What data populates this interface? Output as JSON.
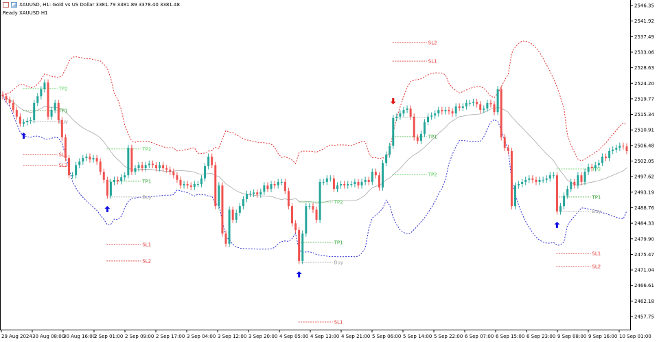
{
  "header": {
    "title": "XAUUSD, H1:  Gold vs US Dollar  3381.79 3381.89 3378.40 3381.48",
    "status": "Ready XAUUSD H1",
    "icons": [
      "chart-list-icon",
      "chart-type-icon"
    ]
  },
  "colors": {
    "bull": "#26a69a",
    "bear": "#ef5350",
    "upper_band": "#e03030",
    "lower_band": "#2a2ad0",
    "middle_band": "#a8a8a8",
    "tp": "#2ca02c",
    "tp2": "#55cc55",
    "buy": "#9a9a9a",
    "sl": "#e03030",
    "buy_arrow": "#1010e0",
    "sell_arrow": "#e01010"
  },
  "chart_data": {
    "type": "candlestick",
    "symbol": "XAUUSD",
    "timeframe": "H1",
    "ylim": [
      2455.5,
      2548.0
    ],
    "y_ticks": [
      "2546.35",
      "2541.92",
      "2537.49",
      "2533.06",
      "2528.63",
      "2524.20",
      "2519.77",
      "2515.34",
      "2510.91",
      "2506.48",
      "2502.05",
      "2497.62",
      "2493.19",
      "2488.76",
      "2484.33",
      "2479.90",
      "2475.47",
      "2471.04",
      "2466.61",
      "2462.18",
      "2457.75"
    ],
    "x_ticks": [
      "29 Aug 2024",
      "30 Aug 08:00",
      "30 Aug 16:00",
      "2 Sep 01:00",
      "2 Sep 09:00",
      "2 Sep 17:00",
      "3 Sep 04:00",
      "3 Sep 12:00",
      "3 Sep 20:00",
      "4 Sep 05:00",
      "4 Sep 13:00",
      "4 Sep 21:00",
      "5 Sep 06:00",
      "5 Sep 14:00",
      "5 Sep 22:00",
      "6 Sep 07:00",
      "6 Sep 15:00",
      "6 Sep 23:00",
      "9 Sep 08:00",
      "9 Sep 16:00",
      "10 Sep 01:00"
    ],
    "closes": [
      2520.5,
      2519.5,
      2518.6,
      2516.6,
      2514.7,
      2512.7,
      2513.1,
      2513.5,
      2513.7,
      2518.6,
      2520.5,
      2522.5,
      2524.4,
      2514.7,
      2516.6,
      2518.6,
      2513.7,
      2508.8,
      2502.9,
      2498.0,
      2498.0,
      2500.9,
      2501.9,
      2502.9,
      2503.3,
      2502.5,
      2502.9,
      2501.9,
      2499.0,
      2496.7,
      2492.2,
      2496.1,
      2496.7,
      2496.3,
      2497.4,
      2498.0,
      2505.8,
      2499.0,
      2500.0,
      2500.9,
      2500.0,
      2500.9,
      2501.3,
      2500.9,
      2500.0,
      2500.9,
      2500.0,
      2499.6,
      2499.0,
      2498.0,
      2496.7,
      2495.1,
      2495.5,
      2495.1,
      2494.7,
      2495.5,
      2495.5,
      2497.1,
      2500.6,
      2503.3,
      2500.9,
      2489.2,
      2495.1,
      2481.4,
      2478.5,
      2488.2,
      2485.3,
      2487.3,
      2489.2,
      2491.2,
      2492.7,
      2492.7,
      2493.1,
      2492.5,
      2493.3,
      2495.1,
      2494.1,
      2495.5,
      2495.1,
      2496.1,
      2496.1,
      2493.5,
      2489.2,
      2484.3,
      2482.4,
      2473.6,
      2481.4,
      2489.2,
      2489.2,
      2488.2,
      2485.3,
      2496.1,
      2496.1,
      2497.1,
      2497.1,
      2494.1,
      2495.1,
      2495.5,
      2495.1,
      2495.5,
      2495.5,
      2496.1,
      2495.1,
      2496.1,
      2496.7,
      2496.1,
      2499.0,
      2498.0,
      2494.5,
      2501.5,
      2503.9,
      2506.4,
      2514.3,
      2514.7,
      2515.6,
      2516.6,
      2517.0,
      2514.7,
      2508.8,
      2507.8,
      2509.8,
      2513.1,
      2514.7,
      2515.0,
      2515.6,
      2516.6,
      2516.2,
      2516.6,
      2516.2,
      2515.6,
      2517.6,
      2517.2,
      2517.6,
      2518.6,
      2518.6,
      2518.9,
      2518.2,
      2516.6,
      2517.0,
      2518.6,
      2518.2,
      2516.0,
      2522.5,
      2508.8,
      2505.8,
      2504.9,
      2489.2,
      2495.1,
      2495.5,
      2496.1,
      2496.7,
      2497.1,
      2496.7,
      2496.1,
      2496.7,
      2496.7,
      2497.1,
      2498.0,
      2498.0,
      2487.7,
      2489.2,
      2492.2,
      2494.1,
      2496.1,
      2495.1,
      2498.0,
      2496.1,
      2499.0,
      2500.4,
      2500.0,
      2500.9,
      2501.5,
      2503.3,
      2502.9,
      2504.9,
      2505.3,
      2505.8,
      2506.4,
      2506.2,
      2504.9
    ],
    "bands": {
      "period": 20,
      "deviation": 2.5
    },
    "signals": [
      {
        "dir": "buy",
        "bar": 6,
        "levels": [
          {
            "label": "TP2",
            "price": 2522.7,
            "kind": "tp2"
          },
          {
            "label": "TP1",
            "price": 2516.4,
            "kind": "tp"
          },
          {
            "label": "Buy",
            "price": 2513.3,
            "kind": "buy"
          },
          {
            "label": "SL1",
            "price": 2503.9,
            "kind": "sl"
          },
          {
            "label": "SL2",
            "price": 2500.9,
            "kind": "sl"
          }
        ]
      },
      {
        "dir": "buy",
        "bar": 30,
        "levels": [
          {
            "label": "TP2",
            "price": 2505.5,
            "kind": "tp2"
          },
          {
            "label": "TP1",
            "price": 2496.3,
            "kind": "tp"
          },
          {
            "label": "Buy",
            "price": 2491.8,
            "kind": "buy"
          },
          {
            "label": "SL1",
            "price": 2478.3,
            "kind": "sl"
          },
          {
            "label": "SL2",
            "price": 2473.6,
            "kind": "sl"
          }
        ]
      },
      {
        "dir": "buy",
        "bar": 85,
        "levels": [
          {
            "label": "TP2",
            "price": 2490.4,
            "kind": "tp2"
          },
          {
            "label": "TP1",
            "price": 2478.9,
            "kind": "tp"
          },
          {
            "label": "Buy",
            "price": 2473.2,
            "kind": "buy"
          },
          {
            "label": "SL1",
            "price": 2456.2,
            "kind": "sl"
          }
        ]
      },
      {
        "dir": "sell",
        "bar": 112,
        "levels": [
          {
            "label": "SL2",
            "price": 2535.8,
            "kind": "sl"
          },
          {
            "label": "SL1",
            "price": 2530.5,
            "kind": "sl"
          },
          {
            "label": "",
            "price": 2514.5,
            "kind": "buy"
          },
          {
            "label": "TP1",
            "price": 2509.0,
            "kind": "tp"
          },
          {
            "label": "TP2",
            "price": 2498.2,
            "kind": "tp2"
          }
        ]
      },
      {
        "dir": "buy",
        "bar": 159,
        "levels": [
          {
            "label": "TP2",
            "price": 2499.8,
            "kind": "tp2"
          },
          {
            "label": "TP1",
            "price": 2491.8,
            "kind": "tp"
          },
          {
            "label": "Buy",
            "price": 2487.8,
            "kind": "buy"
          },
          {
            "label": "SL1",
            "price": 2475.7,
            "kind": "sl"
          },
          {
            "label": "SL2",
            "price": 2472.0,
            "kind": "sl"
          }
        ]
      }
    ]
  }
}
